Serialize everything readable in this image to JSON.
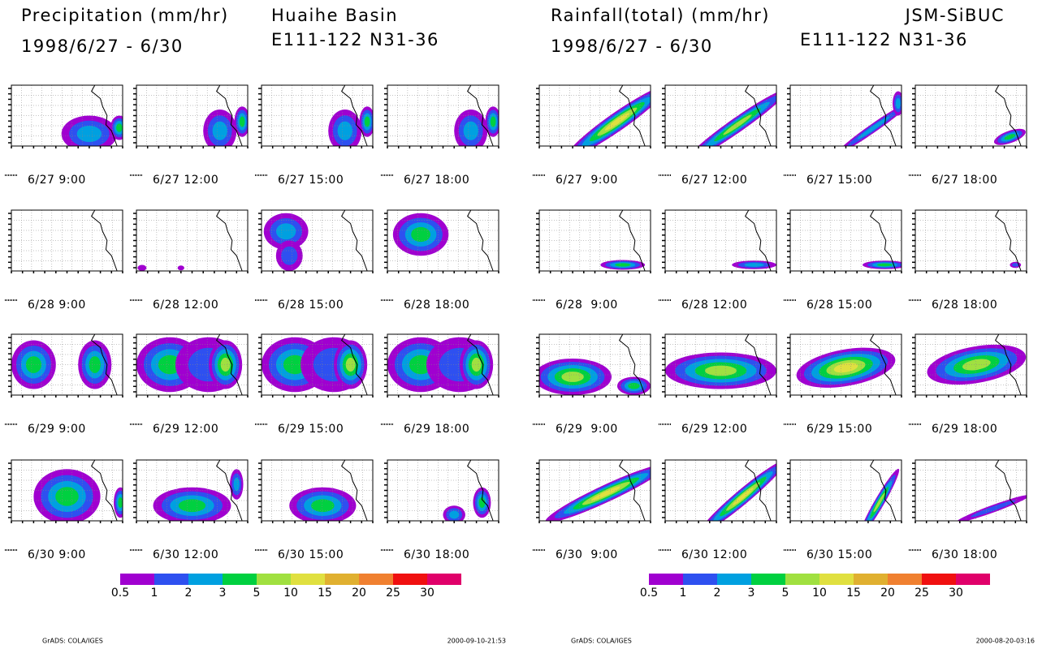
{
  "panels": [
    {
      "title": "Precipitation (mm/hr)",
      "dates": "1998/6/27 - 6/30",
      "region": "Huaihe Basin",
      "coords": "E111-122 N31-36",
      "maps": [
        "6/27 9:00",
        "6/27 12:00",
        "6/27 15:00",
        "6/27 18:00",
        "6/28 9:00",
        "6/28 12:00",
        "6/28 15:00",
        "6/28 18:00",
        "6/29 9:00",
        "6/29 12:00",
        "6/29 15:00",
        "6/29 18:00",
        "6/30 9:00",
        "6/30 12:00",
        "6/30 15:00",
        "6/30 18:00"
      ],
      "colorbar": {
        "labels": [
          "0.5",
          "1",
          "2",
          "3",
          "5",
          "10",
          "15",
          "20",
          "25",
          "30"
        ],
        "colors": [
          "#a000d0",
          "#2e50f0",
          "#00a0e0",
          "#00d040",
          "#a0e040",
          "#e0e040",
          "#e0b030",
          "#f08030",
          "#f01010",
          "#e0006a"
        ]
      },
      "footer_left": "GrADS: COLA/IGES",
      "footer_right": "2000-09-10-21:53"
    },
    {
      "title": "Rainfall(total) (mm/hr)",
      "dates": "1998/6/27 - 6/30",
      "region": "JSM-SiBUC",
      "coords": "E111-122 N31-36",
      "maps": [
        "6/27  9:00",
        "6/27 12:00",
        "6/27 15:00",
        "6/27 18:00",
        "6/28  9:00",
        "6/28 12:00",
        "6/28 15:00",
        "6/28 18:00",
        "6/29  9:00",
        "6/29 12:00",
        "6/29 15:00",
        "6/29 18:00",
        "6/30  9:00",
        "6/30 12:00",
        "6/30 15:00",
        "6/30 18:00"
      ],
      "colorbar": {
        "labels": [
          "0.5",
          "1",
          "2",
          "3",
          "5",
          "10",
          "15",
          "20",
          "25",
          "30"
        ],
        "colors": [
          "#a000d0",
          "#2e50f0",
          "#00a0e0",
          "#00d040",
          "#a0e040",
          "#e0e040",
          "#e0b030",
          "#f08030",
          "#f01010",
          "#e0006a"
        ]
      },
      "footer_left": "GrADS: COLA/IGES",
      "footer_right": "2000-08-20-03:16"
    }
  ]
}
